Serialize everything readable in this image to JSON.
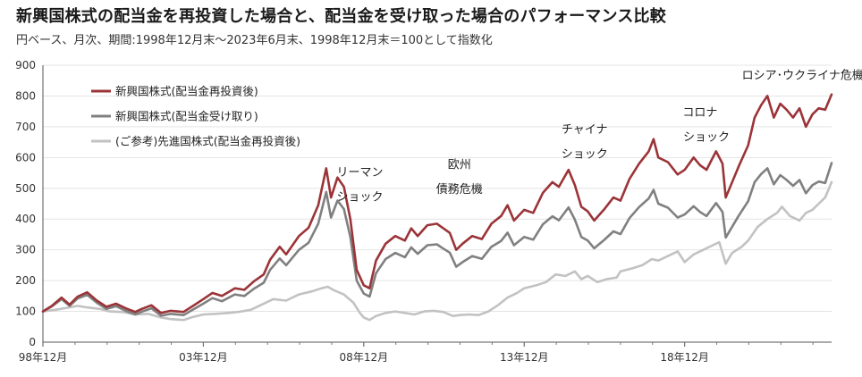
{
  "title": "新興国株式の配当金を再投資した場合と、配当金を受け取った場合のパフォーマンス比較",
  "subtitle": "円ベース、月次、期間:1998年12月末～2023年6月末、1998年12月末＝100として指数化",
  "chart_data": {
    "type": "line",
    "title": "新興国株式の配当金を再投資した場合と、配当金を受け取った場合のパフォーマンス比較",
    "subtitle": "円ベース、月次、期間:1998年12月末～2023年6月末、1998年12月末＝100として指数化",
    "xlabel": "",
    "ylabel": "",
    "xlim": [
      1998.92,
      2023.5
    ],
    "ylim": [
      0,
      900
    ],
    "y_ticks": [
      "0",
      "100",
      "200",
      "300",
      "400",
      "500",
      "600",
      "700",
      "800",
      "900"
    ],
    "x_ticks": [
      {
        "x": 1998.92,
        "label": "98年12月"
      },
      {
        "x": 2003.92,
        "label": "03年12月"
      },
      {
        "x": 2008.92,
        "label": "08年12月"
      },
      {
        "x": 2013.92,
        "label": "13年12月"
      },
      {
        "x": 2018.92,
        "label": "18年12月"
      }
    ],
    "legend_position": "top-left",
    "series": [
      {
        "name": "新興国株式(配当金再投資後)",
        "color": "#9b3438",
        "points": [
          [
            1998.92,
            100
          ],
          [
            1999.2,
            118
          ],
          [
            1999.5,
            145
          ],
          [
            1999.75,
            122
          ],
          [
            2000.0,
            148
          ],
          [
            2000.3,
            162
          ],
          [
            2000.6,
            135
          ],
          [
            2000.9,
            115
          ],
          [
            2001.2,
            125
          ],
          [
            2001.5,
            110
          ],
          [
            2001.8,
            98
          ],
          [
            2002.0,
            108
          ],
          [
            2002.3,
            120
          ],
          [
            2002.6,
            95
          ],
          [
            2002.9,
            102
          ],
          [
            2003.3,
            98
          ],
          [
            2003.6,
            118
          ],
          [
            2003.92,
            140
          ],
          [
            2004.2,
            160
          ],
          [
            2004.5,
            150
          ],
          [
            2004.9,
            175
          ],
          [
            2005.2,
            170
          ],
          [
            2005.5,
            198
          ],
          [
            2005.8,
            220
          ],
          [
            2006.0,
            268
          ],
          [
            2006.3,
            310
          ],
          [
            2006.5,
            285
          ],
          [
            2006.9,
            345
          ],
          [
            2007.2,
            372
          ],
          [
            2007.5,
            445
          ],
          [
            2007.75,
            565
          ],
          [
            2007.9,
            470
          ],
          [
            2008.1,
            535
          ],
          [
            2008.3,
            505
          ],
          [
            2008.5,
            400
          ],
          [
            2008.7,
            235
          ],
          [
            2008.92,
            185
          ],
          [
            2009.1,
            175
          ],
          [
            2009.3,
            265
          ],
          [
            2009.6,
            320
          ],
          [
            2009.9,
            345
          ],
          [
            2010.2,
            330
          ],
          [
            2010.4,
            370
          ],
          [
            2010.6,
            345
          ],
          [
            2010.9,
            380
          ],
          [
            2011.2,
            385
          ],
          [
            2011.4,
            370
          ],
          [
            2011.6,
            355
          ],
          [
            2011.8,
            300
          ],
          [
            2012.0,
            320
          ],
          [
            2012.3,
            345
          ],
          [
            2012.6,
            335
          ],
          [
            2012.9,
            385
          ],
          [
            2013.2,
            410
          ],
          [
            2013.4,
            445
          ],
          [
            2013.6,
            395
          ],
          [
            2013.92,
            430
          ],
          [
            2014.2,
            420
          ],
          [
            2014.5,
            485
          ],
          [
            2014.8,
            520
          ],
          [
            2015.0,
            505
          ],
          [
            2015.3,
            560
          ],
          [
            2015.5,
            510
          ],
          [
            2015.7,
            440
          ],
          [
            2015.9,
            425
          ],
          [
            2016.1,
            395
          ],
          [
            2016.4,
            430
          ],
          [
            2016.7,
            470
          ],
          [
            2016.92,
            460
          ],
          [
            2017.2,
            530
          ],
          [
            2017.5,
            580
          ],
          [
            2017.8,
            620
          ],
          [
            2017.95,
            660
          ],
          [
            2018.1,
            600
          ],
          [
            2018.4,
            585
          ],
          [
            2018.7,
            545
          ],
          [
            2018.92,
            560
          ],
          [
            2019.2,
            600
          ],
          [
            2019.4,
            575
          ],
          [
            2019.6,
            560
          ],
          [
            2019.9,
            620
          ],
          [
            2020.1,
            580
          ],
          [
            2020.2,
            470
          ],
          [
            2020.4,
            520
          ],
          [
            2020.6,
            570
          ],
          [
            2020.9,
            640
          ],
          [
            2021.1,
            730
          ],
          [
            2021.3,
            770
          ],
          [
            2021.5,
            800
          ],
          [
            2021.7,
            730
          ],
          [
            2021.9,
            775
          ],
          [
            2022.1,
            755
          ],
          [
            2022.3,
            730
          ],
          [
            2022.5,
            760
          ],
          [
            2022.7,
            700
          ],
          [
            2022.9,
            740
          ],
          [
            2023.1,
            760
          ],
          [
            2023.3,
            755
          ],
          [
            2023.5,
            805
          ]
        ]
      },
      {
        "name": "新興国株式(配当金受け取り)",
        "color": "#808080",
        "points": [
          [
            1998.92,
            100
          ],
          [
            1999.2,
            116
          ],
          [
            1999.5,
            140
          ],
          [
            1999.75,
            118
          ],
          [
            2000.0,
            142
          ],
          [
            2000.3,
            154
          ],
          [
            2000.6,
            128
          ],
          [
            2000.9,
            108
          ],
          [
            2001.2,
            117
          ],
          [
            2001.5,
            102
          ],
          [
            2001.8,
            90
          ],
          [
            2002.0,
            99
          ],
          [
            2002.3,
            110
          ],
          [
            2002.6,
            86
          ],
          [
            2002.9,
            92
          ],
          [
            2003.3,
            88
          ],
          [
            2003.6,
            106
          ],
          [
            2003.92,
            125
          ],
          [
            2004.2,
            143
          ],
          [
            2004.5,
            133
          ],
          [
            2004.9,
            155
          ],
          [
            2005.2,
            150
          ],
          [
            2005.5,
            174
          ],
          [
            2005.8,
            193
          ],
          [
            2006.0,
            235
          ],
          [
            2006.3,
            272
          ],
          [
            2006.5,
            250
          ],
          [
            2006.9,
            300
          ],
          [
            2007.2,
            323
          ],
          [
            2007.5,
            385
          ],
          [
            2007.75,
            488
          ],
          [
            2007.9,
            405
          ],
          [
            2008.1,
            460
          ],
          [
            2008.3,
            433
          ],
          [
            2008.5,
            342
          ],
          [
            2008.7,
            200
          ],
          [
            2008.92,
            158
          ],
          [
            2009.1,
            148
          ],
          [
            2009.3,
            224
          ],
          [
            2009.6,
            270
          ],
          [
            2009.9,
            290
          ],
          [
            2010.2,
            276
          ],
          [
            2010.4,
            308
          ],
          [
            2010.6,
            287
          ],
          [
            2010.9,
            315
          ],
          [
            2011.2,
            318
          ],
          [
            2011.4,
            304
          ],
          [
            2011.6,
            291
          ],
          [
            2011.8,
            245
          ],
          [
            2012.0,
            260
          ],
          [
            2012.3,
            280
          ],
          [
            2012.6,
            271
          ],
          [
            2012.9,
            310
          ],
          [
            2013.2,
            329
          ],
          [
            2013.4,
            356
          ],
          [
            2013.6,
            315
          ],
          [
            2013.92,
            342
          ],
          [
            2014.2,
            333
          ],
          [
            2014.5,
            383
          ],
          [
            2014.8,
            409
          ],
          [
            2015.0,
            396
          ],
          [
            2015.3,
            438
          ],
          [
            2015.5,
            398
          ],
          [
            2015.7,
            342
          ],
          [
            2015.9,
            330
          ],
          [
            2016.1,
            305
          ],
          [
            2016.4,
            331
          ],
          [
            2016.7,
            360
          ],
          [
            2016.92,
            351
          ],
          [
            2017.2,
            403
          ],
          [
            2017.5,
            439
          ],
          [
            2017.8,
            467
          ],
          [
            2017.95,
            495
          ],
          [
            2018.1,
            450
          ],
          [
            2018.4,
            437
          ],
          [
            2018.7,
            405
          ],
          [
            2018.92,
            415
          ],
          [
            2019.2,
            442
          ],
          [
            2019.4,
            423
          ],
          [
            2019.6,
            410
          ],
          [
            2019.9,
            452
          ],
          [
            2020.1,
            423
          ],
          [
            2020.2,
            340
          ],
          [
            2020.4,
            375
          ],
          [
            2020.6,
            410
          ],
          [
            2020.9,
            458
          ],
          [
            2021.1,
            520
          ],
          [
            2021.3,
            546
          ],
          [
            2021.5,
            565
          ],
          [
            2021.7,
            513
          ],
          [
            2021.9,
            543
          ],
          [
            2022.1,
            527
          ],
          [
            2022.3,
            508
          ],
          [
            2022.5,
            527
          ],
          [
            2022.7,
            484
          ],
          [
            2022.9,
            510
          ],
          [
            2023.1,
            522
          ],
          [
            2023.3,
            517
          ],
          [
            2023.5,
            582
          ]
        ]
      },
      {
        "name": "(ご参考)先進国株式(配当金再投資後)",
        "color": "#c2c2c2",
        "points": [
          [
            1998.92,
            100
          ],
          [
            1999.3,
            105
          ],
          [
            1999.7,
            112
          ],
          [
            2000.0,
            118
          ],
          [
            2000.3,
            113
          ],
          [
            2000.7,
            108
          ],
          [
            2001.0,
            100
          ],
          [
            2001.4,
            98
          ],
          [
            2001.8,
            90
          ],
          [
            2002.2,
            92
          ],
          [
            2002.6,
            80
          ],
          [
            2002.9,
            75
          ],
          [
            2003.3,
            72
          ],
          [
            2003.6,
            82
          ],
          [
            2003.92,
            90
          ],
          [
            2004.3,
            92
          ],
          [
            2004.7,
            95
          ],
          [
            2005.0,
            98
          ],
          [
            2005.4,
            105
          ],
          [
            2005.8,
            125
          ],
          [
            2006.1,
            140
          ],
          [
            2006.5,
            135
          ],
          [
            2006.9,
            155
          ],
          [
            2007.3,
            165
          ],
          [
            2007.6,
            175
          ],
          [
            2007.8,
            180
          ],
          [
            2008.0,
            168
          ],
          [
            2008.3,
            155
          ],
          [
            2008.6,
            128
          ],
          [
            2008.8,
            95
          ],
          [
            2008.92,
            80
          ],
          [
            2009.1,
            72
          ],
          [
            2009.3,
            85
          ],
          [
            2009.6,
            95
          ],
          [
            2009.9,
            100
          ],
          [
            2010.2,
            95
          ],
          [
            2010.5,
            90
          ],
          [
            2010.8,
            100
          ],
          [
            2011.1,
            102
          ],
          [
            2011.4,
            98
          ],
          [
            2011.7,
            85
          ],
          [
            2011.9,
            88
          ],
          [
            2012.2,
            90
          ],
          [
            2012.5,
            88
          ],
          [
            2012.8,
            100
          ],
          [
            2013.1,
            120
          ],
          [
            2013.4,
            145
          ],
          [
            2013.7,
            160
          ],
          [
            2013.92,
            175
          ],
          [
            2014.3,
            185
          ],
          [
            2014.6,
            195
          ],
          [
            2014.9,
            220
          ],
          [
            2015.2,
            215
          ],
          [
            2015.5,
            230
          ],
          [
            2015.7,
            205
          ],
          [
            2015.9,
            215
          ],
          [
            2016.2,
            195
          ],
          [
            2016.5,
            205
          ],
          [
            2016.8,
            210
          ],
          [
            2016.92,
            230
          ],
          [
            2017.3,
            240
          ],
          [
            2017.6,
            250
          ],
          [
            2017.9,
            270
          ],
          [
            2018.1,
            265
          ],
          [
            2018.4,
            280
          ],
          [
            2018.7,
            295
          ],
          [
            2018.92,
            260
          ],
          [
            2019.2,
            285
          ],
          [
            2019.5,
            300
          ],
          [
            2019.8,
            315
          ],
          [
            2020.0,
            325
          ],
          [
            2020.2,
            255
          ],
          [
            2020.4,
            290
          ],
          [
            2020.7,
            310
          ],
          [
            2020.9,
            330
          ],
          [
            2021.2,
            375
          ],
          [
            2021.5,
            400
          ],
          [
            2021.8,
            420
          ],
          [
            2021.95,
            440
          ],
          [
            2022.2,
            410
          ],
          [
            2022.5,
            395
          ],
          [
            2022.7,
            420
          ],
          [
            2022.9,
            430
          ],
          [
            2023.1,
            450
          ],
          [
            2023.3,
            470
          ],
          [
            2023.5,
            520
          ]
        ]
      }
    ],
    "annotations": [
      {
        "text": "リーマン",
        "x": 2008.8,
        "y": 540
      },
      {
        "text": "ショック",
        "x": 2008.8,
        "y": 460
      },
      {
        "text": "欧州",
        "x": 2011.9,
        "y": 565
      },
      {
        "text": "債務危機",
        "x": 2011.9,
        "y": 485
      },
      {
        "text": "チャイナ",
        "x": 2015.8,
        "y": 680
      },
      {
        "text": "ショック",
        "x": 2015.8,
        "y": 600
      },
      {
        "text": "コロナ",
        "x": 2019.4,
        "y": 735
      },
      {
        "text": "ショック",
        "x": 2019.6,
        "y": 655
      },
      {
        "text": "ロシア･ウクライナ危機",
        "x": 2022.6,
        "y": 855
      }
    ]
  }
}
